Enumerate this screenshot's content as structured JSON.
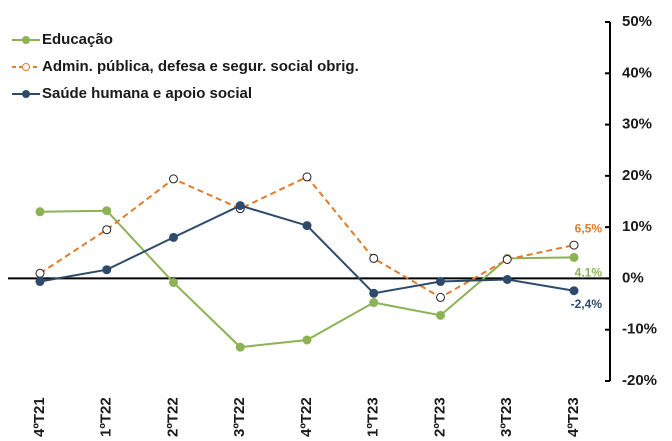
{
  "chart_data": {
    "type": "line",
    "categories": [
      "4ºT21",
      "1ºT22",
      "2ºT22",
      "3ºT22",
      "4ºT22",
      "1ºT23",
      "2ºT23",
      "3ºT23",
      "4ºT23"
    ],
    "series": [
      {
        "name": "Educação",
        "color": "#8db255",
        "dash": false,
        "marker": "filled",
        "values": [
          13.0,
          13.2,
          -0.8,
          -13.4,
          -12.0,
          -4.7,
          -7.2,
          3.9,
          4.1
        ],
        "value_labels": [
          null,
          null,
          null,
          null,
          null,
          null,
          null,
          null,
          "4,1%"
        ]
      },
      {
        "name": "Admin. pública, defesa e segur. social obrig.",
        "color": "#e07b2a",
        "dash": true,
        "marker": "open",
        "values": [
          1.0,
          9.5,
          19.4,
          13.6,
          19.8,
          3.9,
          -3.7,
          3.7,
          6.5
        ],
        "value_labels": [
          null,
          null,
          null,
          null,
          null,
          null,
          null,
          null,
          "6,5%"
        ]
      },
      {
        "name": "Saúde humana e apoio social",
        "color": "#2e4a6b",
        "dash": false,
        "marker": "filled",
        "values": [
          -0.6,
          1.7,
          8.0,
          14.2,
          10.3,
          -2.9,
          -0.6,
          -0.2,
          -2.4
        ],
        "value_labels": [
          null,
          null,
          null,
          null,
          null,
          null,
          null,
          null,
          "-2,4%"
        ]
      }
    ],
    "ylim": [
      -20,
      50
    ],
    "yticks": [
      {
        "value": -20,
        "label": "-20%"
      },
      {
        "value": -10,
        "label": "-10%"
      },
      {
        "value": 0,
        "label": "0%"
      },
      {
        "value": 10,
        "label": "10%"
      },
      {
        "value": 20,
        "label": "20%"
      },
      {
        "value": 30,
        "label": "30%"
      },
      {
        "value": 40,
        "label": "40%"
      },
      {
        "value": 50,
        "label": "50%"
      }
    ],
    "legend": "top-left"
  }
}
